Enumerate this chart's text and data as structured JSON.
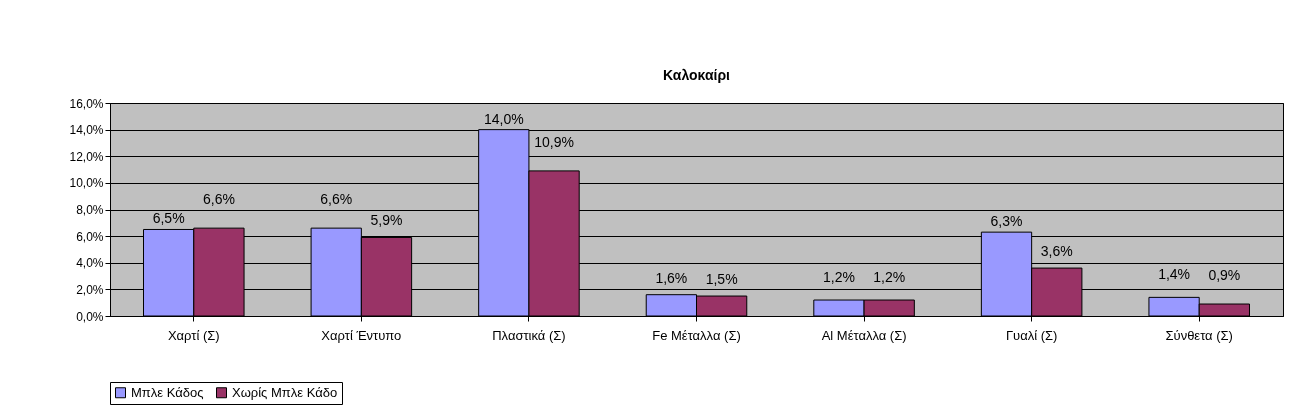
{
  "chart_data": {
    "type": "bar",
    "title": "Καλοκαίρι",
    "categories": [
      "Χαρτί (Σ)",
      "Χαρτί Έντυπο",
      "Πλαστικά (Σ)",
      "Fe Μέταλλα (Σ)",
      "Al Μέταλλα (Σ)",
      "Γυαλί (Σ)",
      "Σύνθετα (Σ)"
    ],
    "series": [
      {
        "name": "Μπλε Κάδος",
        "color": "#9999ff",
        "values": [
          6.5,
          6.6,
          14.0,
          1.6,
          1.2,
          6.3,
          1.4
        ],
        "value_labels": [
          "6,5%",
          "6,6%",
          "14,0%",
          "1,6%",
          "1,2%",
          "6,3%",
          "1,4%"
        ]
      },
      {
        "name": "Χωρίς Μπλε Κάδο",
        "color": "#993366",
        "values": [
          6.6,
          5.9,
          10.9,
          1.5,
          1.2,
          3.6,
          0.9
        ],
        "value_labels": [
          "6,6%",
          "5,9%",
          "10,9%",
          "1,5%",
          "1,2%",
          "3,6%",
          "0,9%"
        ]
      }
    ],
    "ylim": [
      0,
      16
    ],
    "yticks": [
      {
        "value": 0,
        "label": "0,0%"
      },
      {
        "value": 2,
        "label": "2,0%"
      },
      {
        "value": 4,
        "label": "4,0%"
      },
      {
        "value": 6,
        "label": "6,0%"
      },
      {
        "value": 8,
        "label": "8,0%"
      },
      {
        "value": 10,
        "label": "10,0%"
      },
      {
        "value": 12,
        "label": "12,0%"
      },
      {
        "value": 14,
        "label": "14,0%"
      },
      {
        "value": 16,
        "label": "16,0%"
      }
    ],
    "grid": "y",
    "legend": "bottom"
  }
}
